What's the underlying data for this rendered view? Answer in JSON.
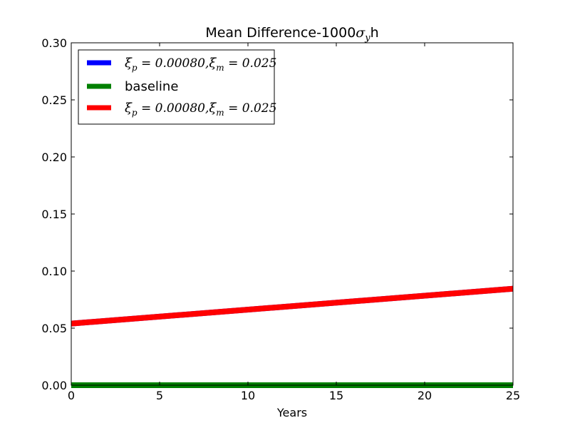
{
  "chart_data": {
    "type": "line",
    "title": "Mean Difference-1000",
    "title_symbol": "σ",
    "title_subscript": "y",
    "title_suffix": "h",
    "xlabel": "Years",
    "ylabel": "",
    "xlim": [
      0,
      25
    ],
    "ylim": [
      0,
      0.3
    ],
    "xticks": [
      "0",
      "5",
      "10",
      "15",
      "20",
      "25"
    ],
    "yticks": [
      "0.00",
      "0.05",
      "0.10",
      "0.15",
      "0.20",
      "0.25",
      "0.30"
    ],
    "grid": false,
    "legend_position": "top-left",
    "series": [
      {
        "name": "ξp = 0.00080, ξm = 0.025",
        "legend_parts": [
          "ξ",
          "p",
          " = 0.00080,",
          "ξ",
          "m",
          " = 0.025"
        ],
        "color": "#0000ff",
        "x": [
          0,
          25
        ],
        "y": [
          0.054,
          0.0845
        ]
      },
      {
        "name": "baseline",
        "color": "#008000",
        "x": [
          0,
          25
        ],
        "y": [
          0.0,
          0.0
        ]
      },
      {
        "name": "ξp = 0.00080, ξm = 0.025",
        "legend_parts": [
          "ξ",
          "p",
          " = 0.00080,",
          "ξ",
          "m",
          " = 0.025"
        ],
        "color": "#ff0000",
        "x": [
          0,
          25
        ],
        "y": [
          0.054,
          0.0845
        ]
      }
    ]
  }
}
